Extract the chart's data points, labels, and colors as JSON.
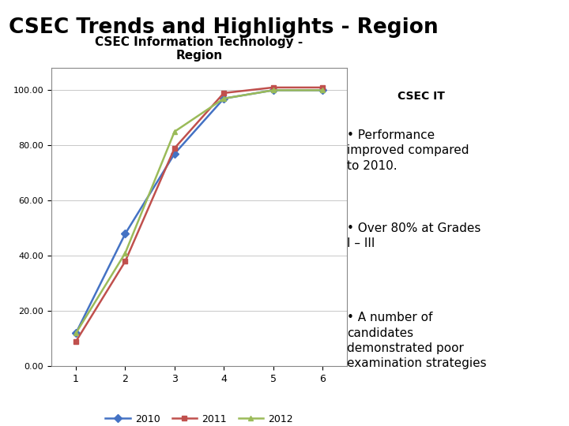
{
  "title": "CSEC Trends and Highlights - Region",
  "title_bg": "#b8dce8",
  "chart_title": "CSEC Information Technology -\nRegion",
  "x_values": [
    1,
    2,
    3,
    4,
    5,
    6
  ],
  "series_order": [
    "2010",
    "2011",
    "2012"
  ],
  "series": {
    "2010": [
      12,
      48,
      77,
      97,
      100,
      100
    ],
    "2011": [
      9,
      38,
      79,
      99,
      101,
      101
    ],
    "2012": [
      12,
      41,
      85,
      97,
      100,
      100
    ]
  },
  "colors": {
    "2010": "#4472c4",
    "2011": "#c0504d",
    "2012": "#9bbb59"
  },
  "markers": {
    "2010": "D",
    "2011": "s",
    "2012": "^"
  },
  "ylim": [
    0,
    108
  ],
  "yticks": [
    0.0,
    20.0,
    40.0,
    60.0,
    80.0,
    100.0
  ],
  "ytick_labels": [
    "0.00",
    "20.00",
    "40.00",
    "60.00",
    "80.00",
    "100.00"
  ],
  "xlim": [
    0.5,
    6.5
  ],
  "xticks": [
    1,
    2,
    3,
    4,
    5,
    6
  ],
  "chart_bg": "#ffffff",
  "slide_bg": "#ffffff",
  "csec_it_label": "CSEC IT",
  "csec_it_bg": "#ffff00",
  "bullets": [
    "Performance\nimproved compared\nto 2010.",
    "Over 80% at Grades\nI – III",
    "A number of\ncandidates\ndemonstrated poor\nexamination strategies"
  ]
}
